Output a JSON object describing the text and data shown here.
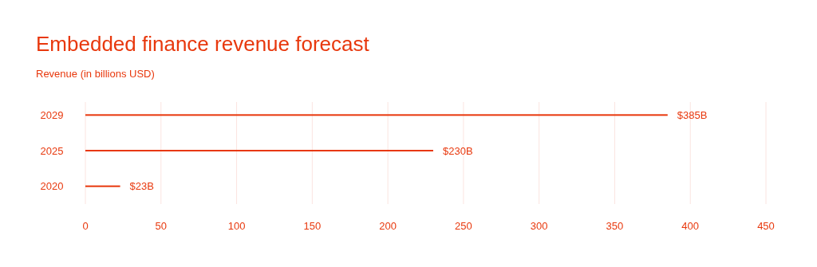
{
  "chart_data": {
    "type": "bar",
    "orientation": "horizontal",
    "title": "Embedded finance revenue forecast",
    "subtitle": "Revenue  (in billions USD)",
    "categories": [
      "2029",
      "2025",
      "2020"
    ],
    "values": [
      385,
      230,
      23
    ],
    "color": "#e8380d",
    "value_labels": [
      "$385B",
      "$230B",
      "$23B"
    ],
    "xlim": [
      0,
      450
    ],
    "xticks": [
      0,
      50,
      100,
      150,
      200,
      250,
      300,
      350,
      400,
      450
    ],
    "grid": "x"
  }
}
